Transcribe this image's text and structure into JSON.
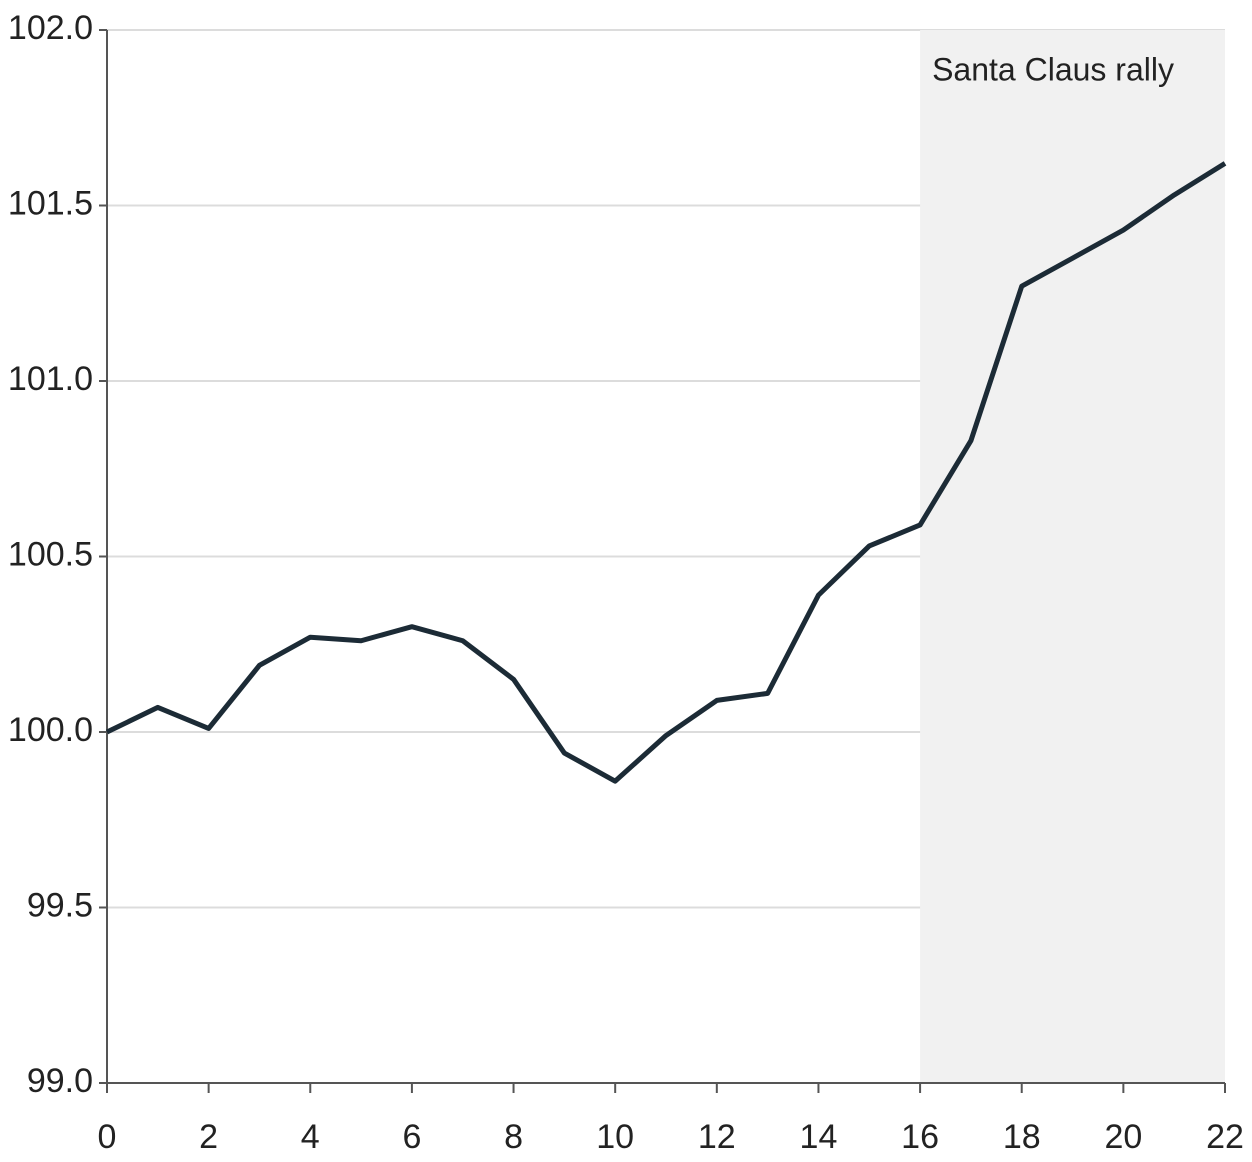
{
  "chart_data": {
    "type": "line",
    "x": [
      0,
      1,
      2,
      3,
      4,
      5,
      6,
      7,
      8,
      9,
      10,
      11,
      12,
      13,
      14,
      15,
      16,
      17,
      18,
      19,
      20,
      21,
      22
    ],
    "series": [
      {
        "color": "#1c2b36",
        "values": [
          100.0,
          100.07,
          100.01,
          100.19,
          100.27,
          100.26,
          100.3,
          100.26,
          100.15,
          99.94,
          99.86,
          99.99,
          100.09,
          100.11,
          100.39,
          100.53,
          100.59,
          100.83,
          101.27,
          101.35,
          101.43,
          101.53,
          101.62
        ]
      }
    ],
    "xlim": [
      0,
      22
    ],
    "xticks": [
      0,
      2,
      4,
      6,
      8,
      10,
      12,
      14,
      16,
      18,
      20,
      22
    ],
    "ylim": [
      99,
      102
    ],
    "yticks": [
      {
        "value": 99,
        "label": "99.0"
      },
      {
        "value": 99.5,
        "label": "99.5"
      },
      {
        "value": 100,
        "label": "100.0"
      },
      {
        "value": 100.5,
        "label": "100.5"
      },
      {
        "value": 101,
        "label": "101.0"
      },
      {
        "value": 101.5,
        "label": "101.5"
      },
      {
        "value": 102,
        "label": "102.0"
      }
    ],
    "grid": true,
    "highlight": {
      "start": 16,
      "end": 22,
      "label": "Santa Claus rally",
      "color": "#f1f1f1"
    }
  }
}
